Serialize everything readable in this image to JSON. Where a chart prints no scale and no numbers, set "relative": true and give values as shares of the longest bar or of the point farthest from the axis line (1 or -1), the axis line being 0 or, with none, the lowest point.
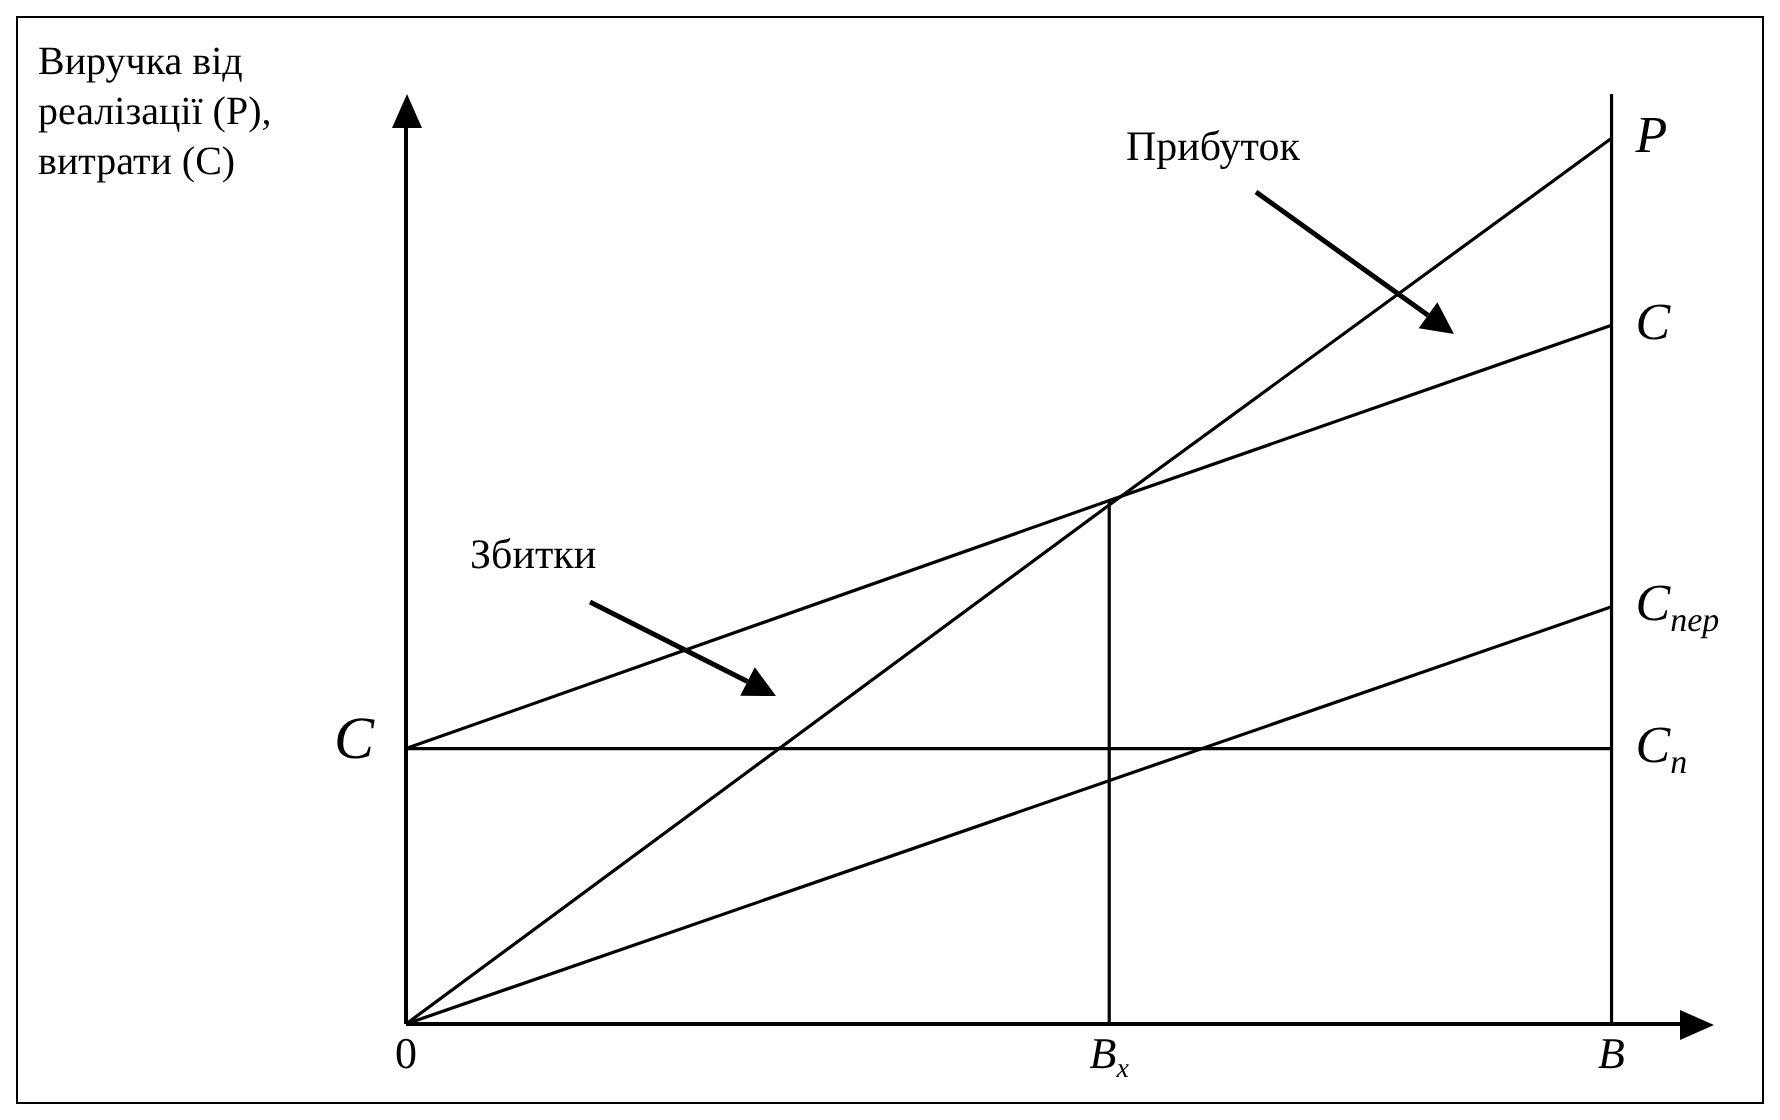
{
  "chart_data": {
    "type": "line",
    "ylabel": "Виручка від реалізації (P), витрати (C)",
    "relative": true,
    "categories": [
      "0",
      null,
      null,
      null,
      null,
      null,
      null,
      "B$_{x}$",
      null,
      null,
      null,
      null,
      "B",
      null
    ],
    "series": [
      {
        "name": "P",
        "color": "#000000",
        "values": [
          0,
          null,
          null,
          null,
          null,
          null,
          null,
          0.586,
          null,
          null,
          null,
          null,
          1,
          null
        ]
      },
      {
        "name": "C",
        "color": "#000000",
        "values": [
          0.311,
          null,
          null,
          null,
          null,
          null,
          null,
          0.591,
          null,
          null,
          null,
          null,
          0.789,
          null
        ]
      },
      {
        "name": "C$_{пер}$",
        "color": "#000000",
        "values": [
          0,
          null,
          null,
          null,
          null,
          null,
          null,
          null,
          null,
          null,
          null,
          null,
          0.471,
          null
        ]
      },
      {
        "name": "C$_{n}$",
        "color": "#000000",
        "values": [
          0.311,
          null,
          null,
          null,
          null,
          null,
          null,
          null,
          null,
          null,
          null,
          null,
          0.311,
          null
        ]
      }
    ],
    "ref_lines": [
      {
        "axis": "x",
        "value": "B$_{x}$"
      },
      {
        "axis": "x",
        "value": "B"
      }
    ],
    "annotations": [
      "Прибуток",
      "Збитки",
      "C"
    ],
    "legend": false,
    "marker": "none",
    "line_style": "solid"
  }
}
